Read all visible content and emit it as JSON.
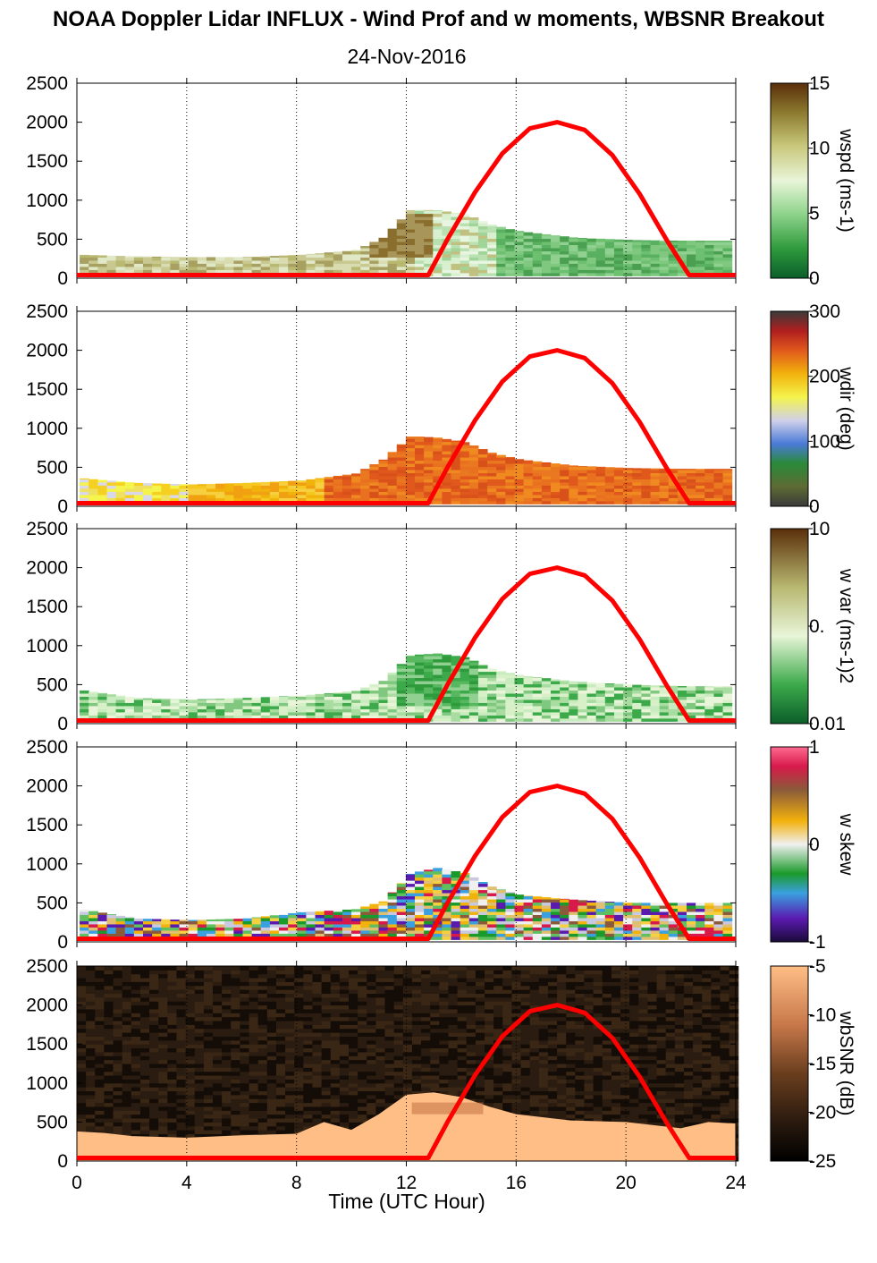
{
  "title": "NOAA Doppler Lidar INFLUX - Wind Prof and w moments, WBSNR Breakout",
  "subtitle": "24-Nov-2016",
  "chart_data": {
    "type": "heatmap",
    "xlabel": "Time (UTC Hour)",
    "xlim": [
      0,
      24
    ],
    "x_ticks": [
      "0",
      "4",
      "8",
      "12",
      "16",
      "20",
      "24"
    ],
    "ylim": [
      0,
      2500
    ],
    "y_ticks": [
      "0",
      "500",
      "1000",
      "1500",
      "2000",
      "2500"
    ],
    "grid": "vertical dotted lines at x ticks",
    "overlay": {
      "name": "solar elevation curve",
      "color": "#ff0000",
      "x": [
        0,
        12.8,
        13.5,
        14.5,
        15.5,
        16.5,
        17.5,
        18.5,
        19.5,
        20.5,
        21.5,
        22.3,
        24
      ],
      "y": [
        40,
        40,
        500,
        1100,
        1600,
        1920,
        2000,
        1900,
        1580,
        1080,
        480,
        40,
        40
      ]
    },
    "panels": [
      {
        "label": "wspd (ms-1)",
        "colorbar_ticks": [
          "15",
          "10",
          "5",
          "0"
        ],
        "top_boundary": {
          "x": [
            0,
            2,
            4,
            6,
            8,
            10,
            11,
            12,
            13,
            14,
            15,
            16,
            18,
            20,
            22,
            23.8
          ],
          "y": [
            300,
            280,
            270,
            270,
            300,
            360,
            520,
            880,
            870,
            820,
            680,
            600,
            520,
            490,
            480,
            480
          ]
        },
        "value_range": [
          0,
          15
        ],
        "typical_values": "1-8 m/s; up to ~13 m/s near 11-12 UTC at 300-800 m"
      },
      {
        "label": "wdir (deg)",
        "colorbar_ticks": [
          "300",
          "200",
          "100",
          "0"
        ],
        "top_boundary": {
          "x": [
            0,
            2,
            4,
            6,
            8,
            10,
            11,
            12,
            13,
            14,
            15,
            16,
            18,
            20,
            22,
            23.8
          ],
          "y": [
            360,
            300,
            280,
            300,
            330,
            420,
            600,
            900,
            880,
            820,
            680,
            600,
            520,
            490,
            480,
            480
          ]
        },
        "value_range": [
          0,
          360
        ],
        "typical_values": "200-270 deg near surface early; 250-300 deg after 9 UTC"
      },
      {
        "label": "w var (ms-1)2",
        "colorbar_ticks": [
          "10",
          "0.",
          "0.01"
        ],
        "top_boundary": {
          "x": [
            0,
            2,
            4,
            6,
            8,
            10,
            11,
            12,
            13,
            14,
            15,
            16,
            18,
            20,
            22,
            23.8
          ],
          "y": [
            430,
            330,
            310,
            330,
            360,
            420,
            550,
            880,
            900,
            850,
            700,
            620,
            540,
            500,
            480,
            480
          ]
        },
        "value_range": [
          0.01,
          10
        ],
        "typical_values": "0.05-0.5 (m/s)^2; higher near 12-14 UTC"
      },
      {
        "label": "w skew",
        "colorbar_ticks": [
          "1",
          "0",
          "-1"
        ],
        "top_boundary": {
          "x": [
            0,
            2,
            4,
            6,
            8,
            10,
            11,
            12,
            13,
            14,
            15,
            16,
            18,
            20,
            22,
            23.8
          ],
          "y": [
            420,
            300,
            280,
            300,
            380,
            420,
            520,
            880,
            950,
            880,
            700,
            600,
            540,
            500,
            500,
            500
          ]
        },
        "value_range": [
          -1,
          1
        ],
        "typical_values": "mixed -1 to 1"
      },
      {
        "label": "wbSNR (dB)",
        "colorbar_ticks": [
          "-5",
          "-10",
          "-15",
          "-20",
          "-25"
        ],
        "top_boundary": {
          "x": [
            0,
            1,
            2,
            4,
            6,
            8,
            9,
            10,
            11,
            12,
            13,
            14,
            15,
            16,
            18,
            20,
            22,
            23,
            24
          ],
          "y": [
            380,
            360,
            320,
            300,
            330,
            350,
            500,
            400,
            600,
            850,
            880,
            820,
            700,
            600,
            520,
            500,
            420,
            500,
            480
          ]
        },
        "value_range": [
          -25,
          -5
        ],
        "typical_values": "-5 dB in boundary layer; ~-24 dB above"
      }
    ]
  }
}
